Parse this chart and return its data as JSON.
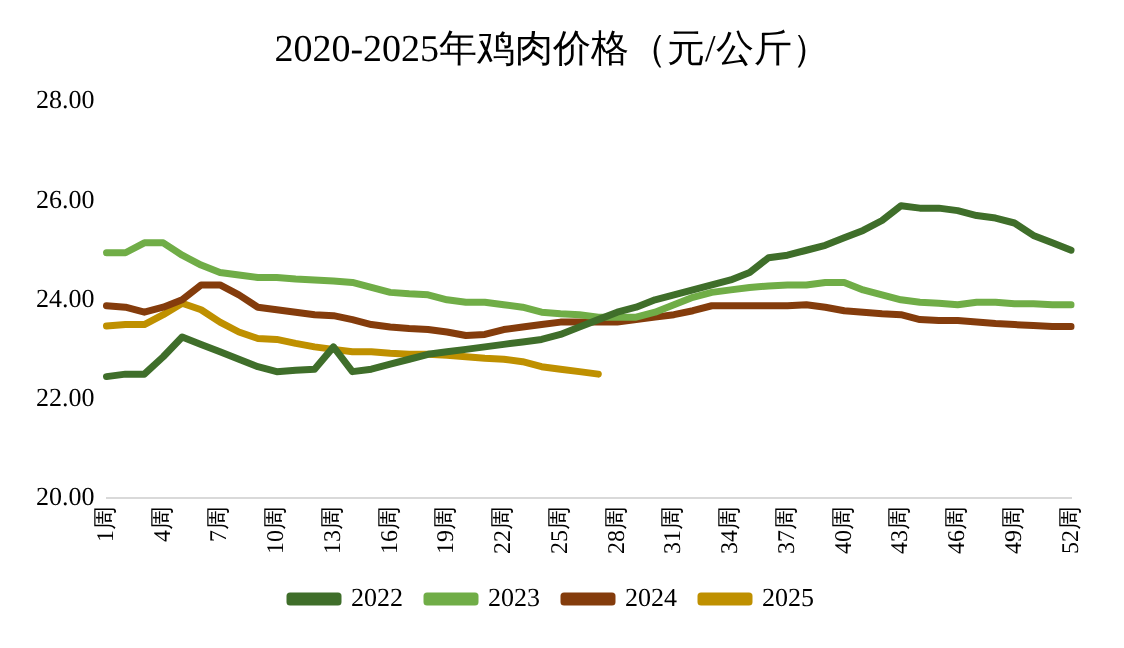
{
  "chart_data": {
    "type": "line",
    "title": "2020-2025年鸡肉价格（元/公斤）",
    "categories": [
      "1周",
      null,
      null,
      "4周",
      null,
      null,
      "7周",
      null,
      null,
      "10周",
      null,
      null,
      "13周",
      null,
      null,
      "16周",
      null,
      null,
      "19周",
      null,
      null,
      "22周",
      null,
      null,
      "25周",
      null,
      null,
      "28周",
      null,
      null,
      "31周",
      null,
      null,
      "34周",
      null,
      null,
      "37周",
      null,
      null,
      "40周",
      null,
      null,
      "43周",
      null,
      null,
      "46周",
      null,
      null,
      "49周",
      null,
      null,
      "52周"
    ],
    "series": [
      {
        "name": "2022",
        "color": "#3f6e2a",
        "values": [
          22.45,
          22.5,
          22.5,
          22.85,
          23.25,
          23.1,
          22.95,
          22.8,
          22.65,
          22.55,
          22.58,
          22.6,
          23.05,
          22.55,
          22.6,
          22.7,
          22.8,
          22.9,
          22.95,
          23.0,
          23.05,
          23.1,
          23.15,
          23.2,
          23.3,
          23.45,
          23.6,
          23.75,
          23.85,
          24.0,
          24.1,
          24.2,
          24.3,
          24.4,
          24.55,
          24.85,
          24.9,
          25.0,
          25.1,
          25.25,
          25.4,
          25.6,
          25.9,
          25.85,
          25.85,
          25.8,
          25.7,
          25.65,
          25.55,
          25.3,
          25.15,
          25.0
        ]
      },
      {
        "name": "2023",
        "color": "#70ad47",
        "values": [
          24.95,
          24.95,
          25.15,
          25.15,
          24.9,
          24.7,
          24.55,
          24.5,
          24.45,
          24.45,
          24.42,
          24.4,
          24.38,
          24.35,
          24.25,
          24.15,
          24.12,
          24.1,
          24.0,
          23.95,
          23.95,
          23.9,
          23.85,
          23.75,
          23.72,
          23.7,
          23.65,
          23.65,
          23.65,
          23.75,
          23.9,
          24.05,
          24.15,
          24.2,
          24.25,
          24.28,
          24.3,
          24.3,
          24.35,
          24.35,
          24.2,
          24.1,
          24.0,
          23.95,
          23.93,
          23.9,
          23.95,
          23.95,
          23.92,
          23.92,
          23.9,
          23.9
        ]
      },
      {
        "name": "2024",
        "color": "#843c0c",
        "values": [
          23.88,
          23.85,
          23.75,
          23.85,
          24.0,
          24.3,
          24.3,
          24.1,
          23.85,
          23.8,
          23.75,
          23.7,
          23.68,
          23.6,
          23.5,
          23.45,
          23.42,
          23.4,
          23.35,
          23.28,
          23.3,
          23.4,
          23.45,
          23.5,
          23.55,
          23.55,
          23.55,
          23.55,
          23.6,
          23.65,
          23.7,
          23.78,
          23.88,
          23.88,
          23.88,
          23.88,
          23.88,
          23.9,
          23.85,
          23.78,
          23.75,
          23.72,
          23.7,
          23.6,
          23.58,
          23.58,
          23.55,
          23.52,
          23.5,
          23.48,
          23.46,
          23.46
        ]
      },
      {
        "name": "2025",
        "color": "#bf9000",
        "values": [
          23.47,
          23.5,
          23.5,
          23.7,
          23.93,
          23.8,
          23.55,
          23.35,
          23.22,
          23.2,
          23.12,
          23.05,
          23.0,
          22.95,
          22.95,
          22.92,
          22.9,
          22.9,
          22.88,
          22.85,
          22.82,
          22.8,
          22.75,
          22.65,
          22.6,
          22.55,
          22.5,
          null,
          null,
          null,
          null,
          null,
          null,
          null,
          null,
          null,
          null,
          null,
          null,
          null,
          null,
          null,
          null,
          null,
          null,
          null,
          null,
          null,
          null,
          null,
          null,
          null
        ]
      }
    ],
    "ylim": [
      20,
      28
    ],
    "yticks": [
      {
        "value": 20,
        "label": "20.00"
      },
      {
        "value": 22,
        "label": "22.00"
      },
      {
        "value": 24,
        "label": "24.00"
      },
      {
        "value": 26,
        "label": "26.00"
      },
      {
        "value": 28,
        "label": "28.00"
      }
    ],
    "grid": false,
    "legend": "bottom",
    "marker": "none",
    "line_style": "solid"
  }
}
